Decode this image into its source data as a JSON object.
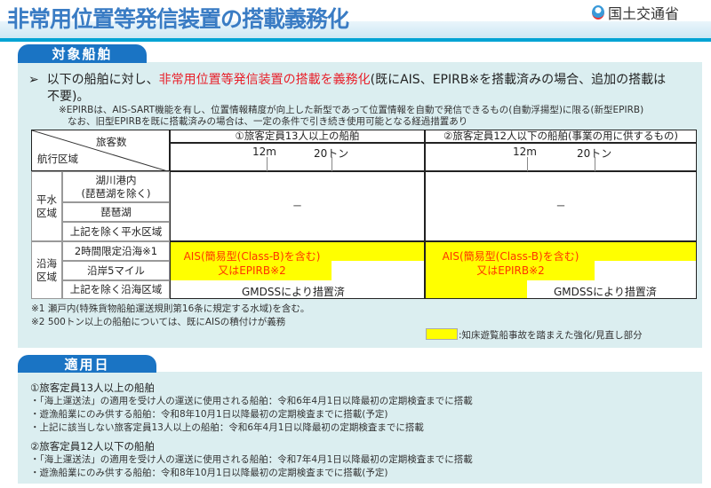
{
  "header": {
    "title": "非常用位置等発信装置の搭載義務化",
    "org": "国土交通省"
  },
  "section1": {
    "tab": "対象船舶",
    "lead_prefix": "以下の船舶に対し、",
    "lead_highlight": "非常用位置等発信装置の搭載を義務化",
    "lead_suffix": "(既にAIS、EPIRB※を搭載済みの場合、追加の搭載は",
    "lead_line2": "不要)。",
    "note1": "※EPIRBは、AIS-SART機能を有し、位置情報精度が向上した新型であって位置情報を自動で発信できるもの(自動浮揚型)に限る(新型EPIRB)",
    "note2": "なお、旧型EPIRBを既に搭載済みの場合は、一定の条件で引き続き使用可能となる経過措置あり",
    "table": {
      "corner_top": "旅客数",
      "corner_bottom": "航行区域",
      "col1": "①旅客定員13人以上の船舶",
      "col2": "②旅客定員12人以下の船舶(事業の用に供するもの)",
      "tick_12m": "12m",
      "tick_20t": "20トン",
      "group1": "平水\n区域",
      "group2": "沿海\n区域",
      "rows": [
        "湖川港内\n(琵琶湖を除く)",
        "琵琶湖",
        "上記を除く平水区域",
        "2時間限定沿海※1",
        "沿岸5マイル",
        "上記を除く沿海区域"
      ],
      "dash": "－",
      "ais_line1": "AIS(簡易型(Class-B)を含む)",
      "ais_line2": "又はEPIRB※2",
      "gmdss": "GMDSSにより措置済"
    },
    "footnote1": "※1  瀬戸内(特殊貨物船舶運送規則第16条に規定する水域)を含む。",
    "footnote2": "※2  500トン以上の船舶については、既にAISの積付けが義務",
    "legend": ":知床遊覧船事故を踏まえた強化/見直し部分",
    "highlight_color": "#ffff00"
  },
  "section2": {
    "tab": "適用日",
    "g1": "①旅客定員13人以上の船舶",
    "g1_items": [
      "・「海上運送法」の適用を受け人の運送に使用される船舶：令和6年4月1日以降最初の定期検査までに搭載",
      "・遊漁船業にのみ供する船舶：令和8年10月1日以降最初の定期検査までに搭載(予定)",
      "・上記に該当しない旅客定員13人以上の船舶：令和6年4月1日以降最初の定期検査までに搭載"
    ],
    "g2": "②旅客定員12人以下の船舶",
    "g2_items": [
      "・「海上運送法」の適用を受け人の運送に使用される船舶：令和7年4月1日以降最初の定期検査までに搭載",
      "・遊漁船業にのみ供する船舶：令和8年10月1日以降最初の定期検査までに搭載(予定)"
    ]
  }
}
